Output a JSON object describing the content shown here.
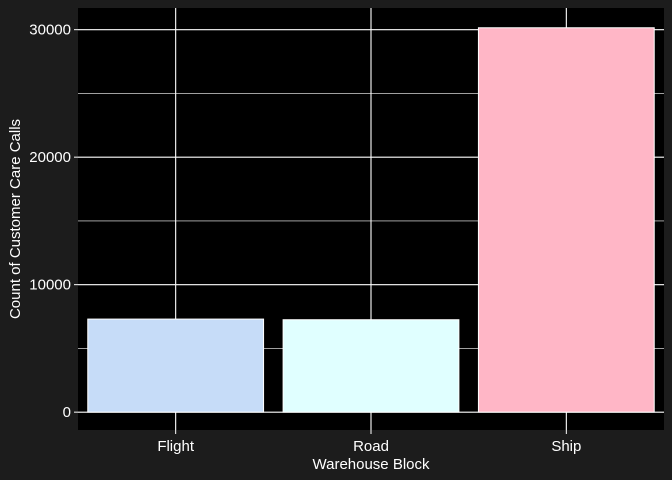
{
  "chart_data": {
    "type": "bar",
    "categories": [
      "Flight",
      "Road",
      "Ship"
    ],
    "values": [
      7300,
      7250,
      30150
    ],
    "colors": [
      "#c6dcf8",
      "#e0ffff",
      "#ffb6c6"
    ],
    "bar_outline": "#ffffff",
    "xlabel": "Warehouse Block",
    "ylabel": "Count of Customer Care Calls",
    "ylim": [
      -1400,
      31700
    ],
    "yticks": [
      0,
      10000,
      20000,
      30000
    ],
    "ytick_labels": [
      "0",
      "10000",
      "20000",
      "30000"
    ],
    "grid": true,
    "grid_color": "#ffffff",
    "panel_background": "#000000",
    "plot_background": "#1c1c1c"
  }
}
